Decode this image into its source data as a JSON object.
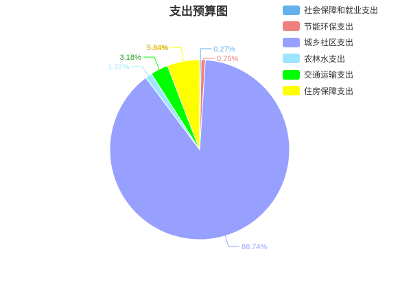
{
  "chart_data": {
    "type": "pie",
    "title": "支出预算图",
    "legend_position": "top-right",
    "slices": [
      {
        "name": "社会保障和就业支出",
        "value": 0.27,
        "label": "0.27%",
        "color": "#63b2ee"
      },
      {
        "name": "节能环保支出",
        "value": 0.75,
        "label": "0.75%",
        "color": "#f08080"
      },
      {
        "name": "城乡社区支出",
        "value": 88.74,
        "label": "88.74%",
        "color": "#97a0ff"
      },
      {
        "name": "农林水支出",
        "value": 1.22,
        "label": "1.22%",
        "color": "#9ee6ff"
      },
      {
        "name": "交通运输支出",
        "value": 3.18,
        "label": "3.18%",
        "color": "#00ff00"
      },
      {
        "name": "住房保障支出",
        "value": 5.84,
        "label": "5.84%",
        "color": "#ffff00"
      }
    ]
  }
}
